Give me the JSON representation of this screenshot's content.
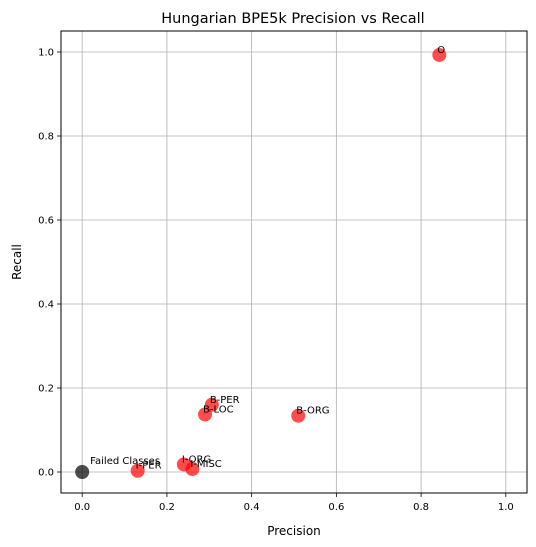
{
  "chart_data": {
    "type": "scatter",
    "title": "Hungarian BPE5k Precision vs Recall",
    "xlabel": "Precision",
    "ylabel": "Recall",
    "xlim": [
      -0.05,
      1.05
    ],
    "ylim": [
      -0.05,
      1.05
    ],
    "grid": true,
    "xticks": [
      0.0,
      0.2,
      0.4,
      0.6,
      0.8,
      1.0
    ],
    "yticks": [
      0.0,
      0.2,
      0.4,
      0.6,
      0.8,
      1.0
    ],
    "xtick_labels": [
      "0.0",
      "0.2",
      "0.4",
      "0.6",
      "0.8",
      "1.0"
    ],
    "ytick_labels": [
      "0.0",
      "0.2",
      "0.4",
      "0.6",
      "0.8",
      "1.0"
    ],
    "colors": {
      "points": "#ff0000",
      "failed": "#000000",
      "grid": "#b0b0b0"
    },
    "points": [
      {
        "label": "O",
        "x": 0.843,
        "y": 0.993
      },
      {
        "label": "B-PER",
        "x": 0.306,
        "y": 0.16
      },
      {
        "label": "B-LOC",
        "x": 0.29,
        "y": 0.137
      },
      {
        "label": "B-ORG",
        "x": 0.51,
        "y": 0.134
      },
      {
        "label": "I-ORG",
        "x": 0.24,
        "y": 0.018
      },
      {
        "label": "I-MISC",
        "x": 0.26,
        "y": 0.007
      },
      {
        "label": "I-PER",
        "x": 0.131,
        "y": 0.003
      }
    ],
    "failed_point": {
      "label": "Failed Classes",
      "x": 0.0,
      "y": 0.0
    }
  }
}
